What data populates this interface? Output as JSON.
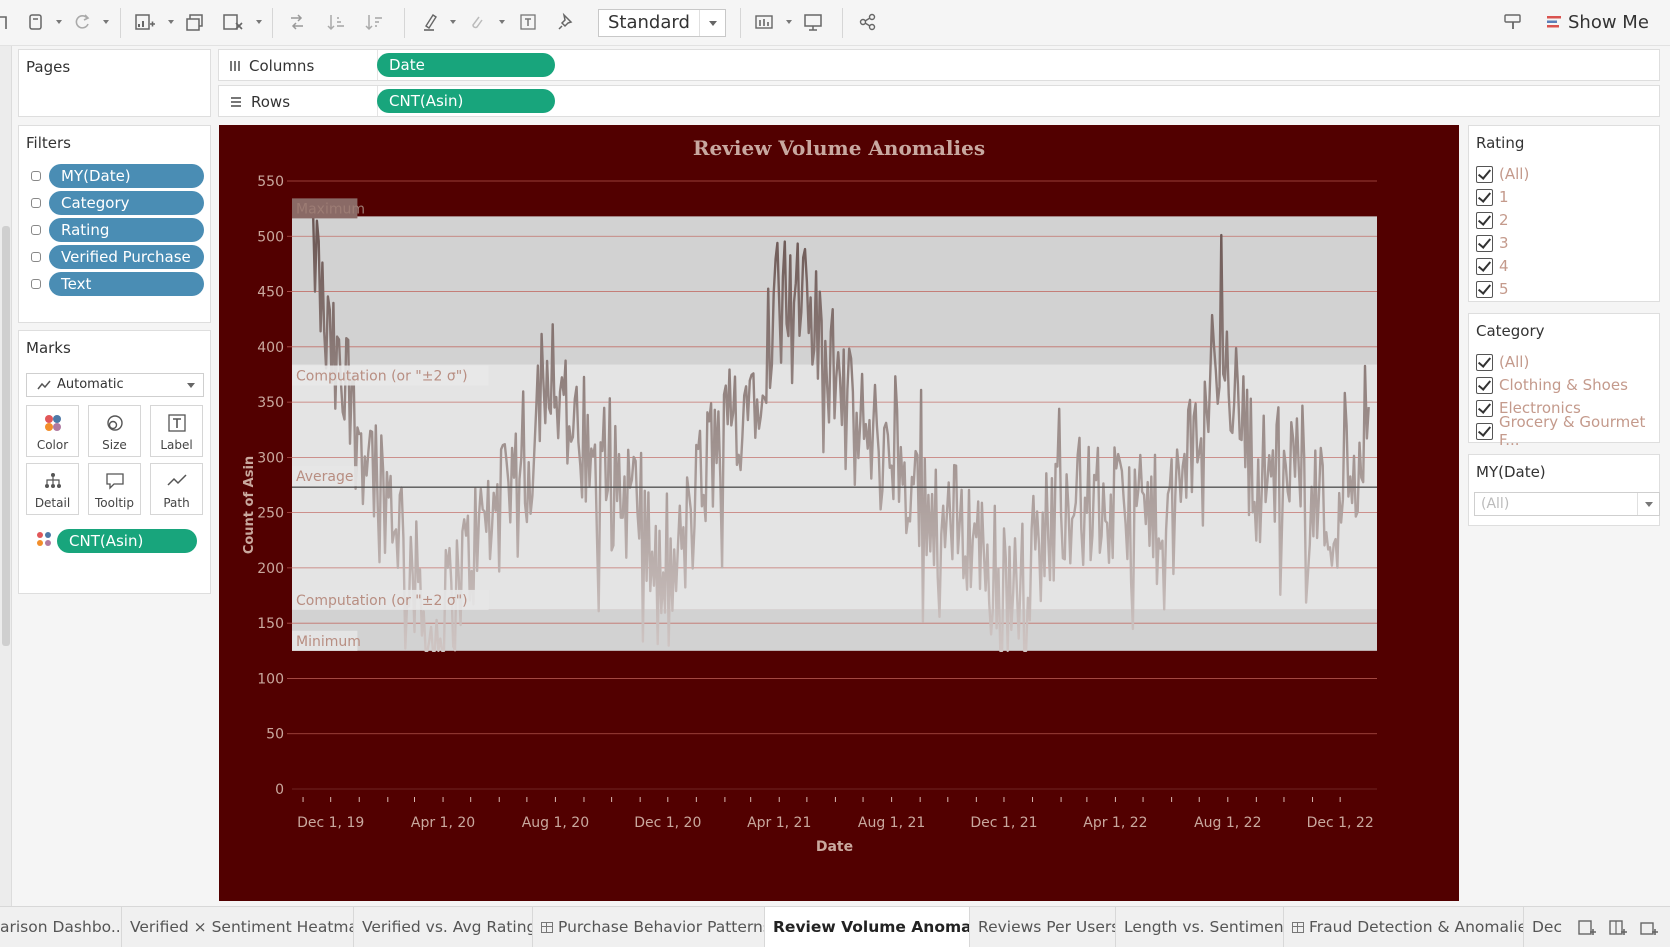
{
  "toolbar": {
    "fit_value": "Standard",
    "show_me_label": "Show Me",
    "icons": [
      "data-source-icon",
      "refresh-icon",
      "new-worksheet-icon",
      "duplicate-icon",
      "clear-sheet-icon",
      "swap-icon",
      "sort-ascending-icon",
      "sort-descending-icon",
      "highlight-icon",
      "group-icon",
      "label-icon",
      "pin-icon",
      "chart-fit-icon",
      "presentation-icon",
      "share-icon",
      "tooltip-icon"
    ]
  },
  "pages": {
    "title": "Pages"
  },
  "filters": {
    "title": "Filters",
    "items": [
      "MY(Date)",
      "Category",
      "Rating",
      "Verified Purchase",
      "Text"
    ]
  },
  "marks": {
    "title": "Marks",
    "type": "Automatic",
    "buttons": [
      "Color",
      "Size",
      "Label",
      "Detail",
      "Tooltip",
      "Path"
    ],
    "field": "CNT(Asin)"
  },
  "shelves": {
    "columns_label": "Columns",
    "columns_pill": "Date",
    "rows_label": "Rows",
    "rows_pill": "CNT(Asin)"
  },
  "legends": {
    "rating": {
      "title": "Rating",
      "items": [
        "(All)",
        "1",
        "2",
        "3",
        "4",
        "5"
      ]
    },
    "category": {
      "title": "Category",
      "items": [
        "(All)",
        "Clothing & Shoes",
        "Electronics",
        "Grocery & Gourmet F..."
      ]
    },
    "mydate": {
      "title": "MY(Date)",
      "value": "(All)"
    }
  },
  "chart_data": {
    "type": "line",
    "title": "Review Volume Anomalies",
    "xlabel": "Date",
    "ylabel": "Count of Asin",
    "ylim": [
      0,
      550
    ],
    "yticks": [
      0,
      50,
      100,
      150,
      200,
      250,
      300,
      350,
      400,
      450,
      500,
      550
    ],
    "xticks": [
      "Dec 1, 19",
      "Apr 1, 20",
      "Aug 1, 20",
      "Dec 1, 20",
      "Apr 1, 21",
      "Aug 1, 21",
      "Dec 1, 21",
      "Apr 1, 22",
      "Aug 1, 22",
      "Dec 1, 22"
    ],
    "x_range": [
      "2019-10-20",
      "2023-01-10"
    ],
    "reference_lines": [
      {
        "label": "Maximum",
        "value": 518
      },
      {
        "label": "Computation (or \"±2 σ\")",
        "value": 384
      },
      {
        "label": "Average",
        "value": 273
      },
      {
        "label": "Computation (or \"±2 σ\")",
        "value": 162
      },
      {
        "label": "Minimum",
        "value": 125
      }
    ],
    "key_points": [
      {
        "date": "2019-11-10",
        "value": 518
      },
      {
        "date": "2019-11-25",
        "value": 410
      },
      {
        "date": "2019-12-15",
        "value": 350
      },
      {
        "date": "2020-01-15",
        "value": 300
      },
      {
        "date": "2020-02-15",
        "value": 240
      },
      {
        "date": "2020-03-20",
        "value": 128
      },
      {
        "date": "2020-04-10",
        "value": 175
      },
      {
        "date": "2020-05-15",
        "value": 240
      },
      {
        "date": "2020-07-01",
        "value": 270
      },
      {
        "date": "2020-07-20",
        "value": 410
      },
      {
        "date": "2020-09-01",
        "value": 285
      },
      {
        "date": "2020-11-01",
        "value": 260
      },
      {
        "date": "2020-11-25",
        "value": 155
      },
      {
        "date": "2021-01-15",
        "value": 300
      },
      {
        "date": "2021-03-01",
        "value": 360
      },
      {
        "date": "2021-04-05",
        "value": 455
      },
      {
        "date": "2021-05-10",
        "value": 420
      },
      {
        "date": "2021-06-20",
        "value": 330
      },
      {
        "date": "2021-08-01",
        "value": 300
      },
      {
        "date": "2021-09-15",
        "value": 250
      },
      {
        "date": "2021-11-01",
        "value": 230
      },
      {
        "date": "2021-12-01",
        "value": 155
      },
      {
        "date": "2022-02-01",
        "value": 265
      },
      {
        "date": "2022-04-01",
        "value": 250
      },
      {
        "date": "2022-06-01",
        "value": 240
      },
      {
        "date": "2022-07-25",
        "value": 405
      },
      {
        "date": "2022-09-01",
        "value": 280
      },
      {
        "date": "2022-10-15",
        "value": 300
      },
      {
        "date": "2022-11-20",
        "value": 240
      },
      {
        "date": "2022-12-15",
        "value": 290
      },
      {
        "date": "2023-01-01",
        "value": 350
      }
    ]
  },
  "tabs": [
    "arison Dashbo...",
    "Verified × Sentiment Heatmap",
    "Verified vs. Avg Rating",
    "Purchase Behavior Patterns",
    "Review Volume Anomalies",
    "Reviews Per Users",
    "Length vs. Sentiment",
    "Fraud Detection & Anomalies",
    "Dec"
  ],
  "active_tab": "Review Volume Anomalies"
}
